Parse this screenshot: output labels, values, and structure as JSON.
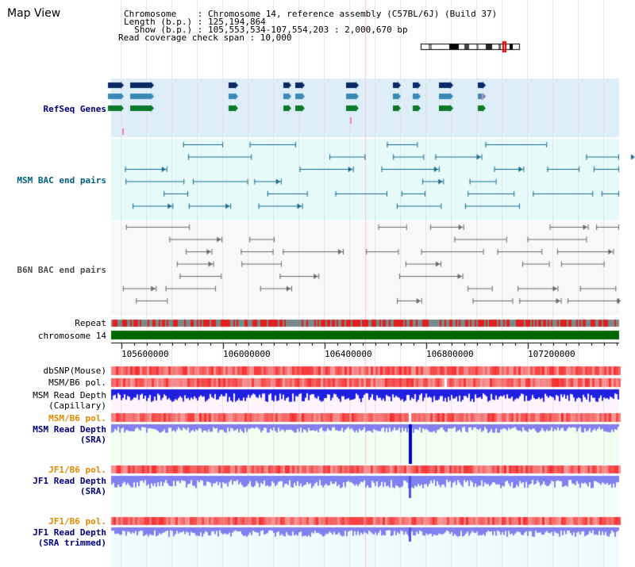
{
  "view": {
    "title": "Map View"
  },
  "info": {
    "chromosome": "Chromosome    : Chromosome 14, reference assembly (C57BL/6J) (Build 37)",
    "length": "Length (b.p.) : 125,194,864",
    "show": "  Show (b.p.) : 105,553,534-107,554,203 : 2,000,670 bp",
    "coverage": "Read coverage check span : 10,000"
  },
  "tracks": {
    "refseq": "RefSeq Genes",
    "msm_bac": "MSM BAC end pairs",
    "b6n_bac": "B6N BAC end pairs",
    "repeat": "Repeat",
    "chromosome": "chromosome 14",
    "dbsnp": "dbSNP(Mouse)",
    "msm_b6_pol_1": "MSM/B6 pol.",
    "msm_depth_cap_1": "MSM Read Depth",
    "msm_depth_cap_2": "(Capillary)",
    "msm_b6_pol_2": "MSM/B6 pol.",
    "msm_depth_sra_1": "MSM Read Depth",
    "msm_depth_sra_2": "(SRA)",
    "jf1_b6_pol_1": "JF1/B6 pol.",
    "jf1_depth_sra_1": "JF1 Read Depth",
    "jf1_depth_sra_2": "(SRA)",
    "jf1_b6_pol_2": "JF1/B6 pol.",
    "jf1_depth_trim_1": "JF1 Read Depth",
    "jf1_depth_trim_2": "(SRA trimmed)"
  },
  "axis": {
    "ticks": [
      "105600000",
      "106000000",
      "106400000",
      "106800000",
      "107200000"
    ]
  },
  "colors": {
    "refseq_bg": "#ddeef8",
    "bac_bg": "#e6fafa",
    "b6n_bg": "#f8f8f8",
    "chromosome_bar": "#006600",
    "depth_blue": "#2020e0",
    "depth_light": "#8080f0",
    "snp_red": "#f05050"
  }
}
